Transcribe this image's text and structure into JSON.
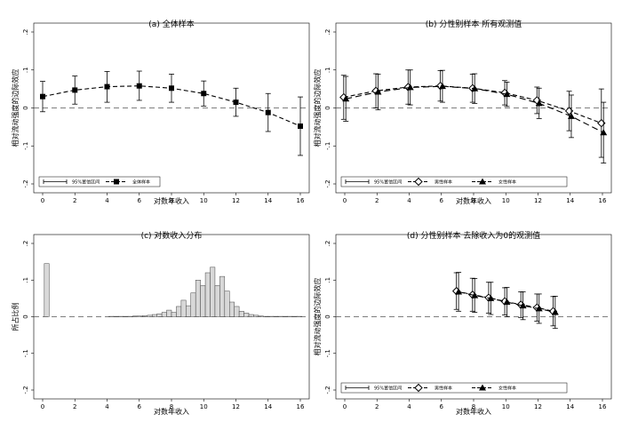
{
  "chart_data": [
    {
      "id": "a",
      "type": "line",
      "title": "(a) 全体样本",
      "xlabel": "对数年收入",
      "ylabel": "相对流动强度的边际效应",
      "xlim": [
        0,
        16
      ],
      "ylim": [
        -0.2,
        0.2
      ],
      "xticks": [
        "0",
        "2",
        "4",
        "6",
        "8",
        "10",
        "12",
        "14",
        "16"
      ],
      "yticks": [
        ".2",
        ".1",
        "0",
        "-.1",
        "-.2"
      ],
      "zero_line": true,
      "legend": [
        "95%置信区间",
        "全体样本"
      ],
      "series": [
        {
          "name": "全体样本",
          "marker": "square",
          "x": [
            0,
            2,
            4,
            6,
            8,
            10,
            12,
            14,
            16
          ],
          "y": [
            0.03,
            0.047,
            0.056,
            0.058,
            0.052,
            0.038,
            0.015,
            -0.012,
            -0.048
          ],
          "lo": [
            -0.01,
            0.01,
            0.015,
            0.02,
            0.015,
            0.005,
            -0.022,
            -0.062,
            -0.125
          ],
          "hi": [
            0.07,
            0.084,
            0.096,
            0.097,
            0.089,
            0.071,
            0.052,
            0.038,
            0.029
          ]
        }
      ]
    },
    {
      "id": "b",
      "type": "line",
      "title": "(b) 分性别样本 所有观测值",
      "xlabel": "对数年收入",
      "ylabel": "相对流动强度的边际效应",
      "xlim": [
        0,
        16
      ],
      "ylim": [
        -0.2,
        0.2
      ],
      "xticks": [
        "0",
        "2",
        "4",
        "6",
        "8",
        "10",
        "12",
        "14",
        "16"
      ],
      "yticks": [
        ".2",
        ".1",
        "0",
        "-.1",
        "-.2"
      ],
      "zero_line": true,
      "legend": [
        "95%置信区间",
        "男性样本",
        "女性样本"
      ],
      "series": [
        {
          "name": "男性样本",
          "marker": "diamond",
          "x": [
            0,
            2,
            4,
            6,
            8,
            10,
            12,
            14,
            16
          ],
          "y": [
            0.028,
            0.045,
            0.055,
            0.058,
            0.052,
            0.04,
            0.02,
            -0.008,
            -0.04
          ],
          "lo": [
            -0.03,
            0.0,
            0.01,
            0.018,
            0.015,
            0.008,
            -0.015,
            -0.06,
            -0.13
          ],
          "hi": [
            0.086,
            0.09,
            0.1,
            0.098,
            0.089,
            0.072,
            0.055,
            0.044,
            0.05
          ]
        },
        {
          "name": "女性样本",
          "marker": "triangle",
          "x": [
            0,
            2,
            4,
            6,
            8,
            10,
            12,
            14,
            16
          ],
          "y": [
            0.024,
            0.042,
            0.054,
            0.057,
            0.051,
            0.036,
            0.012,
            -0.022,
            -0.065
          ],
          "lo": [
            -0.035,
            -0.005,
            0.008,
            0.015,
            0.012,
            0.004,
            -0.028,
            -0.078,
            -0.145
          ],
          "hi": [
            0.083,
            0.089,
            0.1,
            0.099,
            0.09,
            0.068,
            0.052,
            0.034,
            0.015
          ]
        }
      ]
    },
    {
      "id": "c",
      "type": "bar",
      "title": "(c) 对数收入分布",
      "xlabel": "对数年收入",
      "ylabel": "所占比例",
      "xlim": [
        0,
        16
      ],
      "ylim": [
        -0.2,
        0.2
      ],
      "xticks": [
        "0",
        "2",
        "4",
        "6",
        "8",
        "10",
        "12",
        "14",
        "16"
      ],
      "yticks": [
        ".2",
        ".1",
        "0",
        "-.1",
        "-.2"
      ],
      "zero_line": true,
      "bin_width": 0.3,
      "x": [
        0.1,
        4.1,
        4.4,
        4.7,
        5.0,
        5.3,
        5.6,
        5.9,
        6.2,
        6.5,
        6.8,
        7.1,
        7.4,
        7.7,
        8.0,
        8.3,
        8.6,
        8.9,
        9.2,
        9.5,
        9.8,
        10.1,
        10.4,
        10.7,
        11.0,
        11.3,
        11.6,
        11.9,
        12.2,
        12.5,
        12.8,
        13.1,
        13.4,
        13.7,
        14.0,
        14.3,
        14.6,
        14.9,
        15.2,
        15.5,
        15.8
      ],
      "values": [
        0.145,
        0.001,
        0.001,
        0.001,
        0.001,
        0.001,
        0.002,
        0.002,
        0.003,
        0.004,
        0.006,
        0.008,
        0.012,
        0.018,
        0.012,
        0.028,
        0.045,
        0.03,
        0.065,
        0.1,
        0.085,
        0.12,
        0.135,
        0.085,
        0.11,
        0.07,
        0.04,
        0.028,
        0.015,
        0.01,
        0.006,
        0.004,
        0.002,
        0.001,
        0.001,
        0.001,
        0.001,
        0.001,
        0.001,
        0.001,
        0.001
      ]
    },
    {
      "id": "d",
      "type": "line",
      "title": "(d) 分性别样本 去除收入为0的观测值",
      "xlabel": "对数年收入",
      "ylabel": "相对流动强度的边际效应",
      "xlim": [
        0,
        16
      ],
      "ylim": [
        -0.2,
        0.2
      ],
      "xticks": [
        "0",
        "2",
        "4",
        "6",
        "8",
        "10",
        "12",
        "14",
        "16"
      ],
      "yticks": [
        ".2",
        ".1",
        "0",
        "-.1",
        "-.2"
      ],
      "zero_line": true,
      "legend": [
        "95%置信区间",
        "男性样本",
        "女性样本"
      ],
      "series": [
        {
          "name": "男性样本",
          "marker": "diamond",
          "x": [
            7,
            8,
            9,
            10,
            11,
            12,
            13
          ],
          "y": [
            0.07,
            0.06,
            0.052,
            0.042,
            0.033,
            0.025,
            0.015
          ],
          "lo": [
            0.02,
            0.015,
            0.01,
            0.005,
            -0.002,
            -0.012,
            -0.025
          ],
          "hi": [
            0.12,
            0.105,
            0.094,
            0.079,
            0.068,
            0.062,
            0.055
          ]
        },
        {
          "name": "女性样本",
          "marker": "triangle",
          "x": [
            7,
            8,
            9,
            10,
            11,
            12,
            13
          ],
          "y": [
            0.068,
            0.058,
            0.05,
            0.04,
            0.03,
            0.022,
            0.012
          ],
          "lo": [
            0.015,
            0.012,
            0.006,
            0.0,
            -0.008,
            -0.018,
            -0.032
          ],
          "hi": [
            0.121,
            0.104,
            0.094,
            0.08,
            0.068,
            0.062,
            0.056
          ]
        }
      ]
    }
  ]
}
